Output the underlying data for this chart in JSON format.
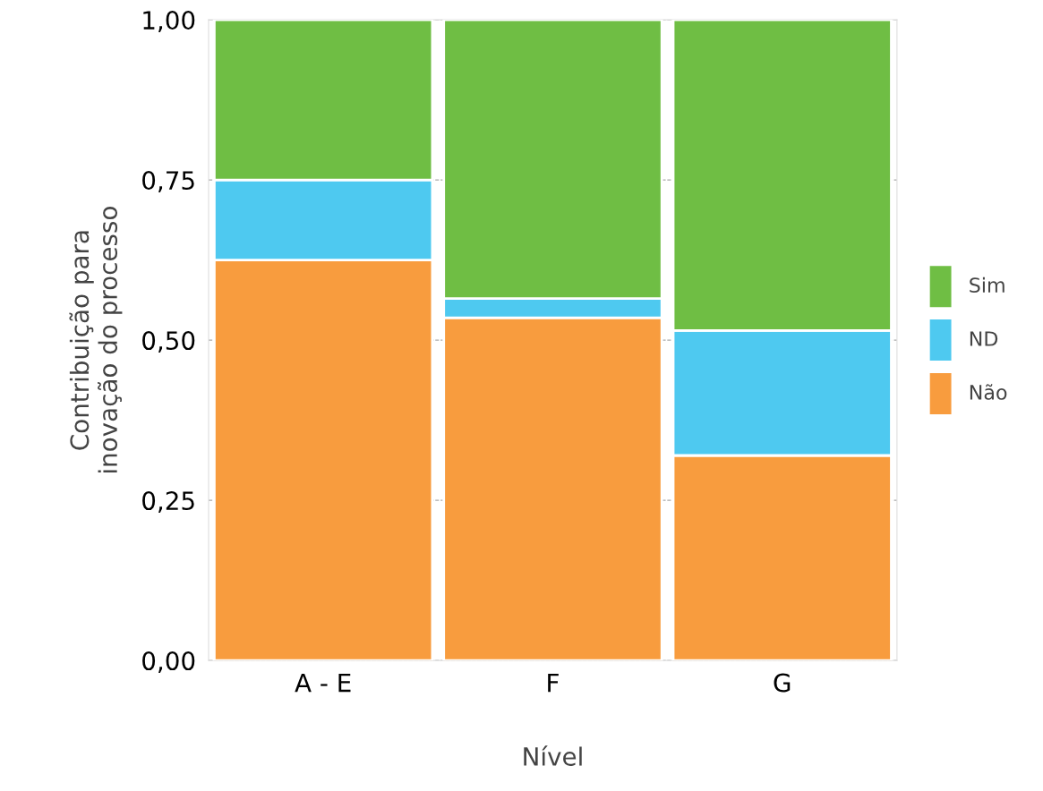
{
  "chart_data": {
    "type": "bar",
    "stacked": true,
    "xlabel": "Nível",
    "ylabel": "Contribuição para\ninovação do processo",
    "categories": [
      "A - E",
      "F",
      "G"
    ],
    "series": [
      {
        "name": "Não",
        "color": "#f89c3e",
        "values": [
          0.625,
          0.535,
          0.32
        ]
      },
      {
        "name": "ND",
        "color": "#4ec9f0",
        "values": [
          0.125,
          0.03,
          0.195
        ]
      },
      {
        "name": "Sim",
        "color": "#6fbe44",
        "values": [
          0.25,
          0.435,
          0.485
        ]
      }
    ],
    "ylim": [
      0,
      1
    ],
    "yticks": [
      {
        "value": 0,
        "label": "0,00"
      },
      {
        "value": 0.25,
        "label": "0,25"
      },
      {
        "value": 0.5,
        "label": "0,50"
      },
      {
        "value": 0.75,
        "label": "0,75"
      },
      {
        "value": 1,
        "label": "1,00"
      }
    ],
    "grid": "y",
    "legend": "right"
  }
}
